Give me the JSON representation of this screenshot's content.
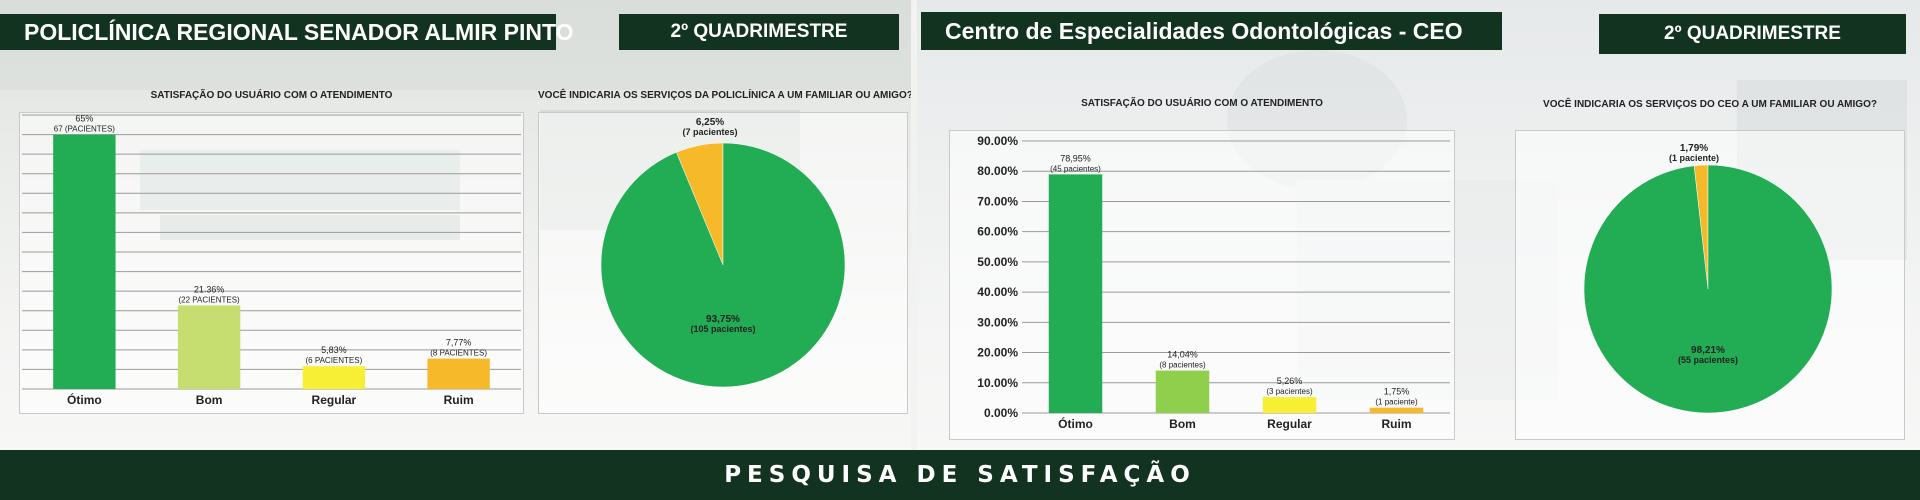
{
  "colors": {
    "dark_green": "#12331f",
    "green": "#22ad55",
    "light_green": "#c6dd70",
    "mid_green": "#8fcf4b",
    "yellow": "#f7ef33",
    "orange": "#f6b92a"
  },
  "left_panel": {
    "title": "POLICLÍNICA REGIONAL SENADOR ALMIR PINTO",
    "period": "2º QUADRIMESTRE",
    "bar_chart_title": "SATISFAÇÃO DO USUÁRIO COM O ATENDIMENTO",
    "pie_chart_title": "VOCÊ INDICARIA OS SERVIÇOS DA POLICLÍNICA A UM FAMILIAR OU AMIGO?"
  },
  "right_panel": {
    "title": "Centro de Especialidades Odontológicas - CEO",
    "period": "2º QUADRIMESTRE",
    "bar_chart_title": "SATISFAÇÃO DO USUÁRIO COM O ATENDIMENTO",
    "pie_chart_title": "VOCÊ INDICARIA OS SERVIÇOS DO CEO A UM FAMILIAR OU AMIGO?"
  },
  "footer": {
    "text": "PESQUISA DE SATISFAÇÃO"
  },
  "chart_data": [
    {
      "type": "bar",
      "title": "SATISFAÇÃO DO USUÁRIO COM O ATENDIMENTO",
      "categories": [
        "Ótimo",
        "Bom",
        "Regular",
        "Ruim"
      ],
      "values": [
        65,
        21.36,
        5.83,
        7.77
      ],
      "labels": [
        "65%",
        "21.36%",
        "5,83%",
        "7,77%"
      ],
      "sublabels": [
        "67 (PACIENTES)",
        "(22 PACIENTES)",
        "(6 PACIENTES)",
        "(8 PACIENTES)"
      ],
      "colors": [
        "#22ad55",
        "#c6dd70",
        "#f7ef33",
        "#f6b92a"
      ],
      "ylim": [
        0,
        70
      ],
      "grid": true,
      "y_axis_visible": false
    },
    {
      "type": "pie",
      "title": "VOCÊ INDICARIA OS SERVIÇOS DA POLICLÍNICA A UM FAMILIAR OU AMIGO?",
      "slices": [
        {
          "value": 6.25,
          "label": "6,25%",
          "sublabel": "(7 pacientes)",
          "color": "#f6b92a"
        },
        {
          "value": 93.75,
          "label": "93,75%",
          "sublabel": "(105 pacientes)",
          "color": "#22ad55"
        }
      ]
    },
    {
      "type": "bar",
      "title": "SATISFAÇÃO DO USUÁRIO COM O ATENDIMENTO",
      "categories": [
        "Ótimo",
        "Bom",
        "Regular",
        "Ruim"
      ],
      "values": [
        78.95,
        14.04,
        5.26,
        1.75
      ],
      "labels": [
        "78,95%",
        "14,04%",
        "5,26%",
        "1,75%"
      ],
      "sublabels": [
        "(45 pacientes)",
        "(8 pacientes)",
        "(3 pacientes)",
        "(1 paciente)"
      ],
      "colors": [
        "#22ad55",
        "#8fcf4b",
        "#f7ef33",
        "#f6b92a"
      ],
      "ylim": [
        0,
        90
      ],
      "yticks": [
        "0.00%",
        "10.00%",
        "20.00%",
        "30.00%",
        "40.00%",
        "50.00%",
        "60.00%",
        "70.00%",
        "80.00%",
        "90.00%"
      ],
      "grid": true,
      "y_axis_visible": true
    },
    {
      "type": "pie",
      "title": "VOCÊ INDICARIA OS SERVIÇOS DO CEO A UM FAMILIAR OU AMIGO?",
      "slices": [
        {
          "value": 1.79,
          "label": "1,79%",
          "sublabel": "(1 paciente)",
          "color": "#f6b92a"
        },
        {
          "value": 98.21,
          "label": "98,21%",
          "sublabel": "(55 pacientes)",
          "color": "#22ad55"
        }
      ]
    }
  ]
}
